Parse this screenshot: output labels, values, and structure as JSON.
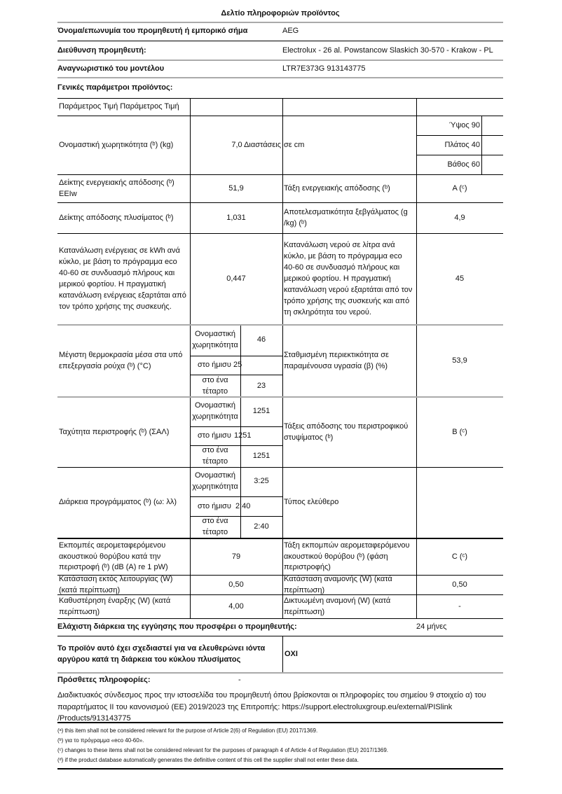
{
  "title": "Δελτίο πληροφοριών προϊόντος",
  "supplier": {
    "label": "Όνομα/επωνυμία του προμηθευτή ή εμπορικό σήμα",
    "value": "AEG"
  },
  "address": {
    "label": "Διεύθυνση προμηθευτή:",
    "value": "Electrolux - 26 al. Powstancow Slaskich 30-570 - Krakow - PL"
  },
  "model": {
    "label": "Αναγνωριστικό του μοντέλου",
    "value": "LTR7E373G 913143775"
  },
  "general": "Γενικές παράμετροι προϊόντος:",
  "table": {
    "header": "Παράμετρος Τιμή Παράμετρος Τιμή",
    "capacity": {
      "label": "Ονομαστική χωρητικότητα (ᵇ) (kg)",
      "value": "7,0 Διαστάσεις",
      "dim_label": "σε cm",
      "height": "Ύψος 90",
      "width": "Πλάτος 40",
      "depth": "Βάθος 60"
    },
    "eei": {
      "label": "Δείκτης ενεργειακής απόδοσης (ᵇ) EEIw",
      "value": "51,9",
      "label2": "Τάξη ενεργειακής απόδοσης (ᵇ)",
      "value2": "A (ᶜ)"
    },
    "washing": {
      "label": "Δείκτης απόδοσης πλυσίματος (ᵇ)",
      "value": "1,031",
      "label2": "Αποτελεσματικότητα ξεβγάλματος (g /kg) (ᵇ)",
      "value2": "4,9"
    },
    "energy": {
      "label": "Κατανάλωση ενέργειας σε kWh ανά κύκλο, με βάση το πρόγραμμα eco 40-60 σε συνδυασμό πλήρους και μερικού φορτίου. Η πραγματική κατανάλωση ενέργειας εξαρτάται από τον τρόπο χρήσης της συσκευής.",
      "value": "0,447",
      "label2": "Κατανάλωση νερού σε λίτρα ανά κύκλο, με βάση το πρόγραμμα eco 40-60 σε συνδυασμό πλήρους και μερικού φορτίου. Η πραγματική κατανάλωση νερού εξαρτάται από τον τρόπο χρήσης της συσκευής και από τη σκληρότητα του νερού.",
      "value2": "45"
    },
    "sub": {
      "rated": "Ονομαστική χωρητικότητα",
      "half": "στο ήμισυ",
      "quarter": "στο ένα τέταρτο"
    },
    "temp": {
      "label": "Μέγιστη θερμοκρασία μέσα στα υπό επεξεργασία ρούχα (ᵇ) (°C)",
      "rated": "46",
      "half": "25",
      "quarter": "23",
      "label2": "Σταθμισμένη περιεκτικότητα σε παραμένουσα υγρασία (β) (%)",
      "value2": "53,9"
    },
    "spin": {
      "label": "Ταχύτητα περιστροφής (ᵇ) (ΣΑΛ)",
      "rated": "1251",
      "half": "1251",
      "quarter": "1251",
      "label2": "Τάξεις απόδοσης του περιστροφικού στυψίματος (ᵇ)",
      "value2": "B (ᶜ)"
    },
    "duration": {
      "label": "Διάρκεια προγράμματος (ᵇ) (ω: λλ)",
      "rated": "3:25",
      "half": "2:40",
      "quarter": "2:40",
      "label2": "Τύπος ελεύθερο",
      "value2": ""
    },
    "noise": {
      "label": "Εκπομπές αερομεταφερόμενου ακουστικού θορύβου κατά την περιστροφή (ᵇ) (dB (A) re 1 pW)",
      "value": "79",
      "label2": "Τάξη εκπομπών αερομεταφερόμενου ακουστικού θορύβου (ᵇ) (φάση περιστροφής)",
      "value2": "C (ᶜ)"
    },
    "off": {
      "label": "Κατάσταση εκτός λειτουργίας (W) (κατά περίπτωση)",
      "value": "0,50",
      "label2": "Κατάσταση αναμονής (W) (κατά περίπτωση)",
      "value2": "0,50"
    },
    "delay": {
      "label": "Καθυστέρηση έναρξης (W) (κατά περίπτωση)",
      "value": "4,00",
      "label2": "Δικτυωμένη αναμονή (W) (κατά περίπτωση)",
      "value2": "-"
    }
  },
  "warranty": {
    "label": "Ελάχιστη διάρκεια της εγγύησης που προσφέρει ο προμηθευτής:",
    "value": "24 μήνες"
  },
  "silver": {
    "label": "Το προϊόν αυτό έχει σχεδιαστεί για να ελευθερώνει ιόντα αργύρου κατά τη διάρκεια του κύκλου πλυσίματος",
    "value": "ΟΧΙ"
  },
  "additional": {
    "label": "Πρόσθετες πληροφορίες:",
    "value": "-",
    "text": "Διαδικτυακός σύνδεσμος προς την ιστοσελίδα του προμηθευτή όπου βρίσκονται οι πληροφορίες του σημείου 9 στοιχείο α) του παραρτήματος II του κανονισμού (ΕΕ) 2019/2023 της Επιτροπής: https://support.electroluxgroup.eu/external/PISlink /Products/913143775"
  },
  "footnotes": [
    "(ᵃ) this item shall not be considered relevant for the purpose of Article 2(6) of Regulation (EU) 2017/1369.",
    "(ᵇ) για το πρόγραμμα «eco 40-60».",
    "(ᶜ) changes to these items shall not be considered relevant for the purposes of paragraph 4 of Article 4 of Regulation (EU) 2017/1369.",
    "(ᵈ) if the product database automatically generates the definitive content of this cell the supplier shall not enter these data."
  ]
}
